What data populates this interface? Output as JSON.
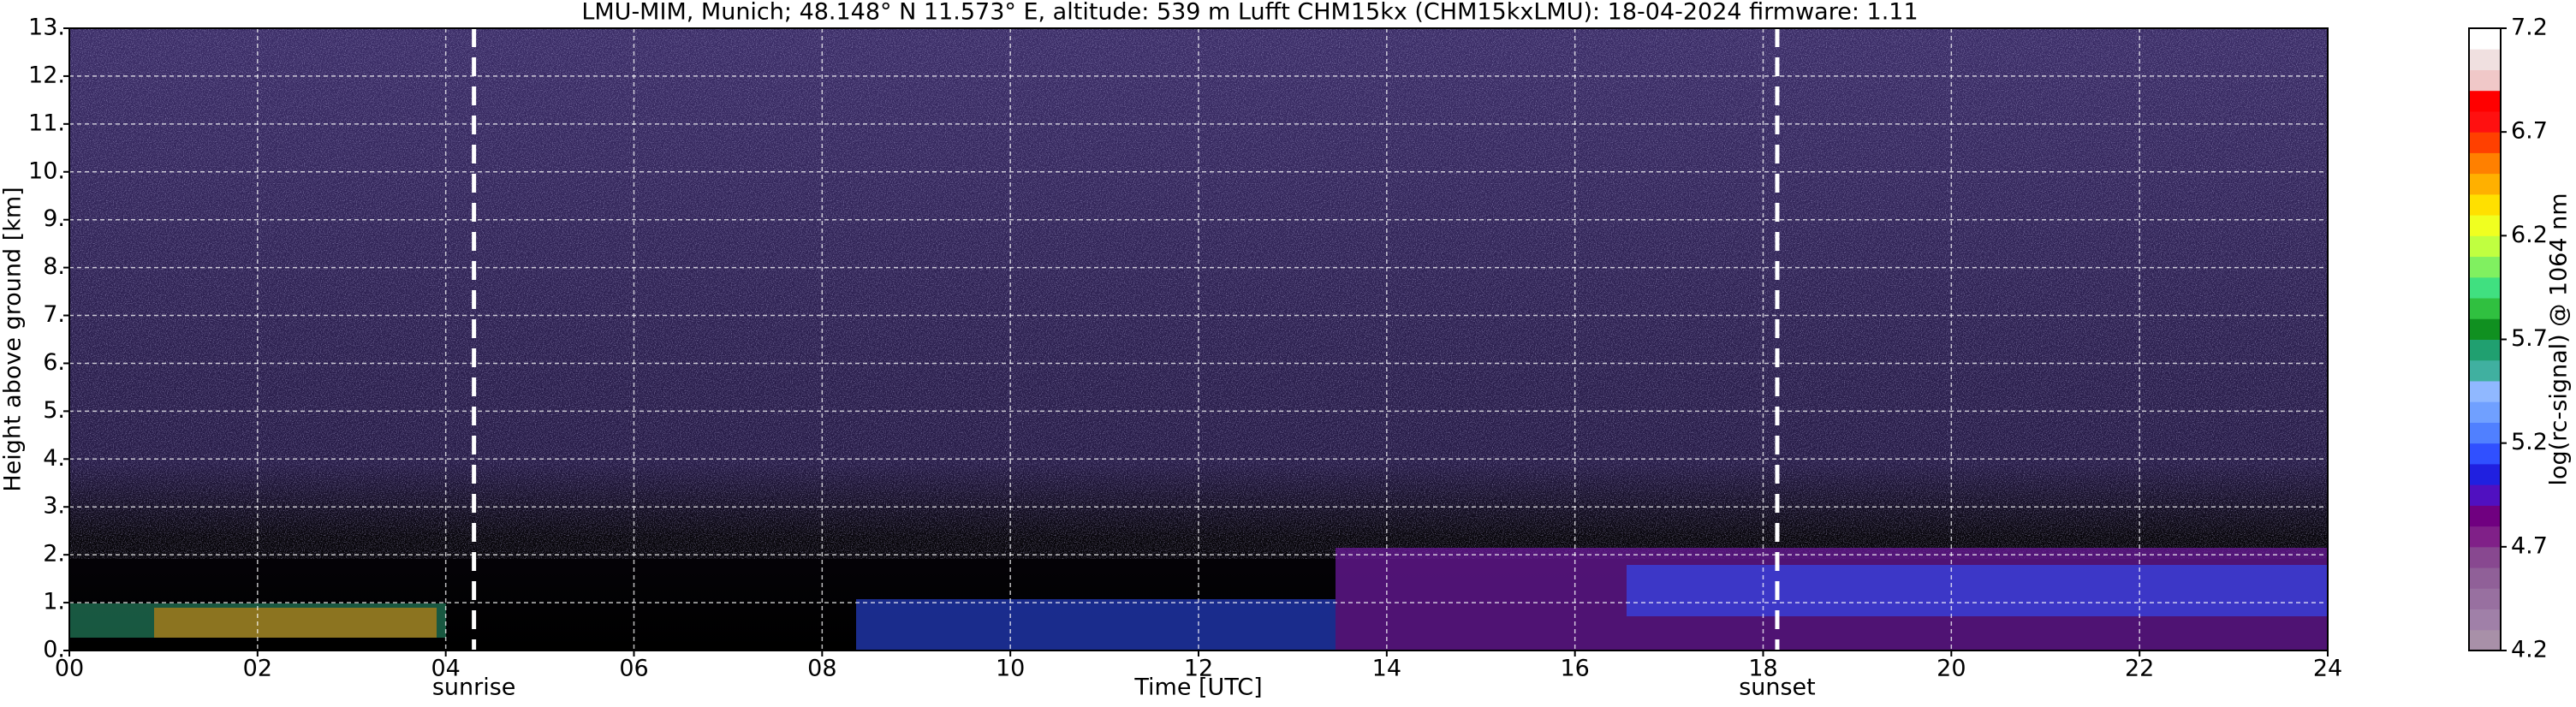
{
  "chart_data": {
    "type": "heatmap",
    "title": "LMU-MIM, Munich; 48.148° N 11.573° E, altitude: 539 m    Lufft CHM15kx (CHM15kxLMU): 18-04-2024    firmware: 1.11",
    "x_label": "Time [UTC]",
    "y_label": "Height above ground [km]",
    "xlim": [
      0,
      24
    ],
    "ylim": [
      0,
      13
    ],
    "xticks": [
      {
        "value": 0,
        "label": "00"
      },
      {
        "value": 2,
        "label": "02"
      },
      {
        "value": 4,
        "label": "04"
      },
      {
        "value": 6,
        "label": "06"
      },
      {
        "value": 8,
        "label": "08"
      },
      {
        "value": 10,
        "label": "10"
      },
      {
        "value": 12,
        "label": "12"
      },
      {
        "value": 14,
        "label": "14"
      },
      {
        "value": 16,
        "label": "16"
      },
      {
        "value": 18,
        "label": "18"
      },
      {
        "value": 20,
        "label": "20"
      },
      {
        "value": 22,
        "label": "22"
      },
      {
        "value": 24,
        "label": "24"
      }
    ],
    "yticks": [
      {
        "value": 0,
        "label": "0."
      },
      {
        "value": 1,
        "label": "1."
      },
      {
        "value": 2,
        "label": "2."
      },
      {
        "value": 3,
        "label": "3."
      },
      {
        "value": 4,
        "label": "4."
      },
      {
        "value": 5,
        "label": "5."
      },
      {
        "value": 6,
        "label": "6."
      },
      {
        "value": 7,
        "label": "7."
      },
      {
        "value": 8,
        "label": "8."
      },
      {
        "value": 9,
        "label": "9."
      },
      {
        "value": 10,
        "label": "10."
      },
      {
        "value": 11,
        "label": "11."
      },
      {
        "value": 12,
        "label": "12."
      },
      {
        "value": 13,
        "label": "13."
      }
    ],
    "grid": true,
    "markers": [
      {
        "label": "sunrise",
        "x": 4.3
      },
      {
        "label": "sunset",
        "x": 18.15
      }
    ],
    "colorbar": {
      "label": "log(rc-signal) @ 1064 nm",
      "lim": [
        4.2,
        7.2
      ],
      "ticks": [
        4.2,
        4.7,
        5.2,
        5.7,
        6.2,
        6.7,
        7.2
      ],
      "colors": [
        "#a890a8",
        "#a080a8",
        "#9870a0",
        "#906098",
        "#884890",
        "#802088",
        "#700080",
        "#5010c0",
        "#2020e0",
        "#3050ff",
        "#5080ff",
        "#70a0ff",
        "#90b8ff",
        "#40b0a0",
        "#20a070",
        "#109020",
        "#30c040",
        "#40e080",
        "#80f060",
        "#c0ff40",
        "#f0ff20",
        "#ffe000",
        "#ffb000",
        "#ff8000",
        "#ff4000",
        "#ff1010",
        "#ff0000",
        "#f0c8c8",
        "#f0e0e0",
        "#ffffff"
      ]
    }
  }
}
